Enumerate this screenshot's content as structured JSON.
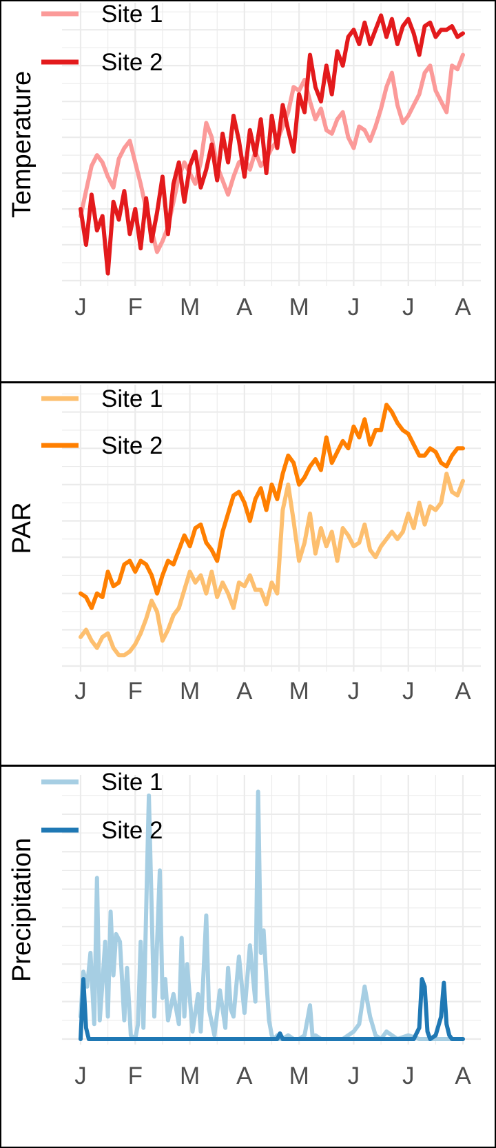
{
  "chart_data": [
    {
      "type": "line",
      "ylabel": "Temperature",
      "x_tick_labels": [
        "J",
        "F",
        "M",
        "A",
        "M",
        "J",
        "J",
        "A"
      ],
      "x_range": [
        0,
        7
      ],
      "ylim": [
        0,
        7.6
      ],
      "y_gridlines": [
        0,
        1,
        2,
        3,
        4,
        5,
        6,
        7
      ],
      "legend": {
        "position": "top-left",
        "entries": [
          "Site 1",
          "Site 2"
        ]
      },
      "series": [
        {
          "name": "Site 1",
          "color": "#fb9a99",
          "x": [
            0,
            0.1,
            0.2,
            0.3,
            0.4,
            0.5,
            0.6,
            0.7,
            0.8,
            0.9,
            1.0,
            1.1,
            1.2,
            1.3,
            1.4,
            1.5,
            1.6,
            1.7,
            1.8,
            1.9,
            2.0,
            2.1,
            2.2,
            2.3,
            2.4,
            2.5,
            2.6,
            2.7,
            2.8,
            2.9,
            3.0,
            3.1,
            3.2,
            3.3,
            3.4,
            3.5,
            3.6,
            3.7,
            3.8,
            3.9,
            4.0,
            4.1,
            4.2,
            4.3,
            4.4,
            4.5,
            4.6,
            4.7,
            4.8,
            4.9,
            5.0,
            5.1,
            5.2,
            5.3,
            5.4,
            5.5,
            5.6,
            5.7,
            5.8,
            5.9,
            6.0,
            6.1,
            6.2,
            6.3,
            6.4,
            6.5,
            6.6,
            6.7,
            6.8,
            6.9,
            7.0
          ],
          "values": [
            1.8,
            2.5,
            3.2,
            3.5,
            3.3,
            2.9,
            2.6,
            3.4,
            3.7,
            3.9,
            3.3,
            2.7,
            2.0,
            1.4,
            0.8,
            1.1,
            1.5,
            2.2,
            2.9,
            3.3,
            3.0,
            2.7,
            3.3,
            4.4,
            4.0,
            3.2,
            2.8,
            2.4,
            2.9,
            3.3,
            3.4,
            3.1,
            3.6,
            3.2,
            3.4,
            3.7,
            3.9,
            4.3,
            4.7,
            5.4,
            5.3,
            5.6,
            5.0,
            4.5,
            4.8,
            4.2,
            4.1,
            4.5,
            4.7,
            4.0,
            3.7,
            4.3,
            4.2,
            3.9,
            4.3,
            4.8,
            5.4,
            5.8,
            4.9,
            4.4,
            4.6,
            4.9,
            5.2,
            5.8,
            6.0,
            5.3,
            5.0,
            4.7,
            6.0,
            5.9,
            6.3
          ]
        },
        {
          "name": "Site 2",
          "color": "#e31a1c",
          "x": [
            0,
            0.1,
            0.2,
            0.3,
            0.4,
            0.5,
            0.6,
            0.7,
            0.8,
            0.9,
            1.0,
            1.1,
            1.2,
            1.3,
            1.4,
            1.5,
            1.6,
            1.7,
            1.8,
            1.9,
            2.0,
            2.1,
            2.2,
            2.3,
            2.4,
            2.5,
            2.6,
            2.7,
            2.8,
            2.9,
            3.0,
            3.1,
            3.2,
            3.3,
            3.4,
            3.5,
            3.6,
            3.7,
            3.8,
            3.9,
            4.0,
            4.1,
            4.2,
            4.3,
            4.4,
            4.5,
            4.6,
            4.7,
            4.8,
            4.9,
            5.0,
            5.1,
            5.2,
            5.3,
            5.4,
            5.5,
            5.6,
            5.7,
            5.8,
            5.9,
            6.0,
            6.1,
            6.2,
            6.3,
            6.4,
            6.5,
            6.6,
            6.7,
            6.8,
            6.9,
            7.0
          ],
          "values": [
            2.0,
            1.0,
            2.4,
            1.4,
            1.8,
            0.2,
            2.2,
            1.7,
            2.5,
            1.3,
            2.0,
            0.9,
            2.3,
            1.1,
            1.9,
            2.9,
            1.3,
            2.7,
            3.3,
            2.2,
            3.2,
            3.6,
            2.6,
            3.1,
            3.8,
            2.8,
            4.1,
            3.3,
            4.6,
            3.9,
            2.9,
            4.2,
            3.5,
            4.5,
            3.0,
            4.6,
            3.7,
            4.9,
            4.2,
            3.6,
            5.2,
            4.7,
            6.3,
            5.4,
            5.0,
            6.0,
            5.2,
            6.4,
            6.0,
            6.8,
            7.0,
            6.6,
            7.2,
            6.6,
            7.0,
            7.4,
            6.8,
            7.3,
            6.6,
            7.1,
            7.3,
            6.9,
            6.3,
            7.1,
            7.2,
            6.8,
            7.0,
            7.0,
            7.1,
            6.8,
            6.9
          ]
        }
      ]
    },
    {
      "type": "line",
      "ylabel": "PAR",
      "x_tick_labels": [
        "J",
        "F",
        "M",
        "A",
        "M",
        "J",
        "J",
        "A"
      ],
      "x_range": [
        0,
        7
      ],
      "ylim": [
        0,
        7.6
      ],
      "y_gridlines": [
        0,
        1,
        2,
        3,
        4,
        5,
        6,
        7
      ],
      "legend": {
        "position": "top-left",
        "entries": [
          "Site 1",
          "Site 2"
        ]
      },
      "series": [
        {
          "name": "Site 1",
          "color": "#fdbf6f",
          "x": [
            0,
            0.1,
            0.2,
            0.3,
            0.4,
            0.5,
            0.6,
            0.7,
            0.8,
            0.9,
            1.0,
            1.1,
            1.2,
            1.3,
            1.4,
            1.5,
            1.6,
            1.7,
            1.8,
            1.9,
            2.0,
            2.1,
            2.2,
            2.3,
            2.4,
            2.5,
            2.6,
            2.7,
            2.8,
            2.9,
            3.0,
            3.1,
            3.2,
            3.3,
            3.4,
            3.5,
            3.6,
            3.7,
            3.8,
            3.9,
            4.0,
            4.1,
            4.2,
            4.3,
            4.4,
            4.5,
            4.6,
            4.7,
            4.8,
            4.9,
            5.0,
            5.1,
            5.2,
            5.3,
            5.4,
            5.5,
            5.6,
            5.7,
            5.8,
            5.9,
            6.0,
            6.1,
            6.2,
            6.3,
            6.4,
            6.5,
            6.6,
            6.7,
            6.8,
            6.9,
            7.0
          ],
          "values": [
            0.8,
            1.0,
            0.7,
            0.5,
            0.8,
            0.9,
            0.5,
            0.3,
            0.3,
            0.4,
            0.6,
            0.9,
            1.3,
            1.8,
            1.5,
            0.7,
            1.0,
            1.4,
            1.6,
            2.1,
            2.6,
            2.3,
            2.5,
            2.0,
            2.6,
            1.9,
            2.3,
            2.0,
            1.6,
            2.3,
            2.2,
            2.5,
            2.1,
            2.1,
            1.7,
            2.3,
            2.0,
            4.3,
            5.0,
            4.0,
            2.9,
            3.4,
            4.2,
            3.1,
            3.8,
            3.3,
            3.7,
            2.9,
            3.8,
            3.6,
            3.3,
            3.4,
            3.9,
            3.2,
            3.0,
            3.3,
            3.5,
            3.7,
            3.5,
            3.7,
            4.2,
            3.8,
            4.5,
            3.9,
            4.4,
            4.3,
            4.5,
            5.3,
            4.8,
            4.7,
            5.1
          ]
        },
        {
          "name": "Site 2",
          "color": "#ff7f00",
          "x": [
            0,
            0.1,
            0.2,
            0.3,
            0.4,
            0.5,
            0.6,
            0.7,
            0.8,
            0.9,
            1.0,
            1.1,
            1.2,
            1.3,
            1.4,
            1.5,
            1.6,
            1.7,
            1.8,
            1.9,
            2.0,
            2.1,
            2.2,
            2.3,
            2.4,
            2.5,
            2.6,
            2.7,
            2.8,
            2.9,
            3.0,
            3.1,
            3.2,
            3.3,
            3.4,
            3.5,
            3.6,
            3.7,
            3.8,
            3.9,
            4.0,
            4.1,
            4.2,
            4.3,
            4.4,
            4.5,
            4.6,
            4.7,
            4.8,
            4.9,
            5.0,
            5.1,
            5.2,
            5.3,
            5.4,
            5.5,
            5.6,
            5.7,
            5.8,
            5.9,
            6.0,
            6.1,
            6.2,
            6.3,
            6.4,
            6.5,
            6.6,
            6.7,
            6.8,
            6.9,
            7.0
          ],
          "values": [
            2.0,
            1.9,
            1.6,
            2.0,
            1.9,
            2.6,
            2.2,
            2.3,
            2.8,
            2.9,
            2.6,
            2.9,
            2.8,
            2.5,
            2.0,
            2.5,
            2.9,
            2.8,
            3.2,
            3.6,
            3.3,
            3.8,
            3.9,
            3.4,
            3.2,
            2.9,
            3.7,
            4.2,
            4.7,
            4.8,
            4.5,
            4.0,
            4.6,
            4.9,
            4.3,
            5.0,
            4.6,
            5.3,
            5.8,
            5.6,
            5.0,
            5.2,
            5.5,
            5.7,
            5.4,
            6.3,
            5.6,
            5.9,
            6.2,
            6.0,
            6.6,
            6.3,
            6.8,
            6.1,
            6.5,
            6.5,
            7.2,
            7.0,
            6.7,
            6.5,
            6.4,
            6.1,
            5.8,
            5.8,
            6.0,
            5.9,
            5.6,
            5.5,
            5.8,
            6.0,
            6.0
          ]
        }
      ]
    },
    {
      "type": "line",
      "ylabel": "Precipitation",
      "x_tick_labels": [
        "J",
        "F",
        "M",
        "A",
        "M",
        "J",
        "J",
        "A"
      ],
      "x_range": [
        0,
        7
      ],
      "ylim": [
        0,
        6.9
      ],
      "y_gridlines": [
        0,
        1,
        2,
        3,
        4,
        5,
        6
      ],
      "legend": {
        "position": "top-left",
        "entries": [
          "Site 1",
          "Site 2"
        ]
      },
      "series": [
        {
          "name": "Site 1",
          "color": "#a6cee3",
          "x": [
            0,
            0.05,
            0.12,
            0.18,
            0.25,
            0.3,
            0.35,
            0.4,
            0.45,
            0.5,
            0.55,
            0.6,
            0.65,
            0.72,
            0.8,
            0.85,
            0.92,
            1.0,
            1.05,
            1.1,
            1.15,
            1.25,
            1.35,
            1.45,
            1.5,
            1.55,
            1.6,
            1.7,
            1.8,
            1.85,
            1.9,
            1.95,
            2.05,
            2.15,
            2.2,
            2.3,
            2.35,
            2.45,
            2.55,
            2.65,
            2.7,
            2.75,
            2.8,
            2.9,
            3.0,
            3.1,
            3.2,
            3.25,
            3.3,
            3.35,
            3.4,
            3.45,
            3.5,
            3.55,
            3.6,
            3.65,
            3.7,
            3.8,
            3.9,
            4.0,
            4.1,
            4.2,
            4.25,
            4.3,
            4.4,
            4.6,
            4.8,
            5.0,
            5.1,
            5.2,
            5.3,
            5.4,
            5.5,
            5.6,
            5.8,
            6.0,
            6.2,
            6.4,
            6.6,
            6.8,
            7.0
          ],
          "values": [
            0.6,
            1.8,
            1.4,
            2.3,
            0.4,
            4.3,
            0.5,
            1.5,
            2.6,
            0.6,
            3.4,
            1.7,
            2.8,
            2.6,
            0.5,
            1.9,
            0.1,
            0.0,
            0.4,
            2.6,
            0.3,
            6.5,
            0.6,
            4.5,
            1.1,
            1.6,
            0.5,
            1.2,
            0.4,
            2.7,
            0.6,
            2.0,
            0.2,
            1.2,
            0.2,
            3.3,
            0.8,
            0.1,
            1.3,
            0.3,
            1.9,
            0.8,
            0.6,
            2.2,
            0.7,
            2.5,
            1.0,
            6.6,
            2.3,
            2.9,
            1.6,
            0.5,
            0.1,
            0.0,
            0.1,
            0.0,
            0.0,
            0.1,
            0.0,
            0.0,
            0.1,
            0.9,
            0.0,
            0.1,
            0.0,
            0.0,
            0.0,
            0.2,
            0.4,
            1.4,
            0.6,
            0.1,
            0.0,
            0.2,
            0.0,
            0.1,
            0.0,
            0.0,
            0.0,
            0.0,
            0.0
          ]
        },
        {
          "name": "Site 2",
          "color": "#1f78b4",
          "x": [
            0,
            0.05,
            0.1,
            0.15,
            0.2,
            1.0,
            2.0,
            3.0,
            3.6,
            3.65,
            3.7,
            4.0,
            5.0,
            6.0,
            6.1,
            6.2,
            6.25,
            6.3,
            6.35,
            6.4,
            6.5,
            6.6,
            6.65,
            6.7,
            6.75,
            6.8,
            7.0
          ],
          "values": [
            0.0,
            1.6,
            0.3,
            0.0,
            0.0,
            0.0,
            0.0,
            0.0,
            0.0,
            0.15,
            0.0,
            0.0,
            0.0,
            0.0,
            0.0,
            0.3,
            1.6,
            1.4,
            0.2,
            0.0,
            0.1,
            0.6,
            1.5,
            0.4,
            0.1,
            0.0,
            0.0
          ]
        }
      ]
    }
  ]
}
